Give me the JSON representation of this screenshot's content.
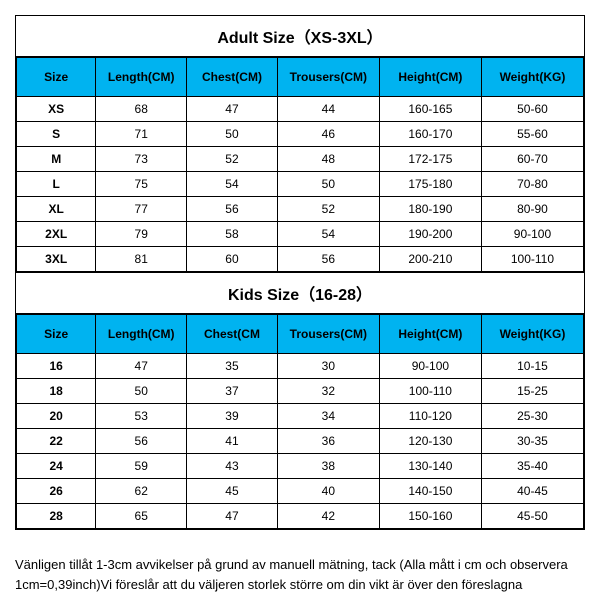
{
  "adult": {
    "title": "Adult Size（XS-3XL）",
    "columns": [
      "Size",
      "Length(CM)",
      "Chest(CM)",
      "Trousers(CM)",
      "Height(CM)",
      "Weight(KG)"
    ],
    "rows": [
      [
        "XS",
        "68",
        "47",
        "44",
        "160-165",
        "50-60"
      ],
      [
        "S",
        "71",
        "50",
        "46",
        "160-170",
        "55-60"
      ],
      [
        "M",
        "73",
        "52",
        "48",
        "172-175",
        "60-70"
      ],
      [
        "L",
        "75",
        "54",
        "50",
        "175-180",
        "70-80"
      ],
      [
        "XL",
        "77",
        "56",
        "52",
        "180-190",
        "80-90"
      ],
      [
        "2XL",
        "79",
        "58",
        "54",
        "190-200",
        "90-100"
      ],
      [
        "3XL",
        "81",
        "60",
        "56",
        "200-210",
        "100-110"
      ]
    ]
  },
  "kids": {
    "title": "Kids Size（16-28）",
    "columns": [
      "Size",
      "Length(CM)",
      "Chest(CM",
      "Trousers(CM)",
      "Height(CM)",
      "Weight(KG)"
    ],
    "rows": [
      [
        "16",
        "47",
        "35",
        "30",
        "90-100",
        "10-15"
      ],
      [
        "18",
        "50",
        "37",
        "32",
        "100-110",
        "15-25"
      ],
      [
        "20",
        "53",
        "39",
        "34",
        "110-120",
        "25-30"
      ],
      [
        "22",
        "56",
        "41",
        "36",
        "120-130",
        "30-35"
      ],
      [
        "24",
        "59",
        "43",
        "38",
        "130-140",
        "35-40"
      ],
      [
        "26",
        "62",
        "45",
        "40",
        "140-150",
        "40-45"
      ],
      [
        "28",
        "65",
        "47",
        "42",
        "150-160",
        "45-50"
      ]
    ]
  },
  "note": "Vänligen tillåt 1-3cm avvikelser på grund av manuell mätning, tack (Alla mått i cm och observera 1cm=0,39inch)Vi föreslår att du väljeren storlek större om din vikt är över den föreslagna",
  "styling": {
    "header_bg": "#00b3f0",
    "border_color": "#000000",
    "background": "#ffffff",
    "title_fontsize": 16,
    "header_fontsize": 12,
    "cell_fontsize": 12,
    "note_fontsize": 13
  }
}
